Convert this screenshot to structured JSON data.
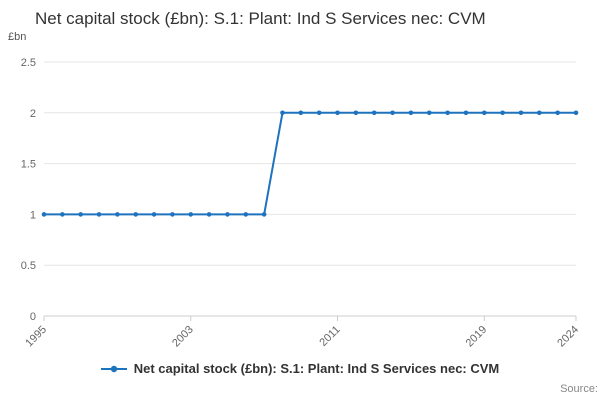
{
  "page": {
    "title": "Net capital stock (£bn): S.1: Plant: Ind S Services nec: CVM",
    "unit_label": "£bn",
    "source_label": "Source:"
  },
  "legend": {
    "label": "Net capital stock (£bn): S.1: Plant: Ind S Services nec: CVM"
  },
  "chart_data": {
    "type": "line",
    "title": "Net capital stock (£bn): S.1: Plant: Ind S Services nec: CVM",
    "xlabel": "",
    "ylabel": "£bn",
    "x": [
      1995,
      1996,
      1997,
      1998,
      1999,
      2000,
      2001,
      2002,
      2003,
      2004,
      2005,
      2006,
      2007,
      2008,
      2009,
      2010,
      2011,
      2012,
      2013,
      2014,
      2015,
      2016,
      2017,
      2018,
      2019,
      2020,
      2021,
      2022,
      2023,
      2024
    ],
    "series": [
      {
        "name": "Net capital stock (£bn): S.1: Plant: Ind S Services nec: CVM",
        "values": [
          1,
          1,
          1,
          1,
          1,
          1,
          1,
          1,
          1,
          1,
          1,
          1,
          1,
          2,
          2,
          2,
          2,
          2,
          2,
          2,
          2,
          2,
          2,
          2,
          2,
          2,
          2,
          2,
          2,
          2
        ]
      }
    ],
    "ylim": [
      0,
      2.5
    ],
    "yticks": [
      0,
      0.5,
      1,
      1.5,
      2,
      2.5
    ],
    "xticks": [
      1995,
      2003,
      2011,
      2019,
      2024
    ],
    "grid": true,
    "legend_position": "bottom",
    "colors": {
      "line": "#1e73be",
      "grid": "#e6e6e6",
      "axis": "#cccccc",
      "tick_text": "#666666"
    }
  }
}
